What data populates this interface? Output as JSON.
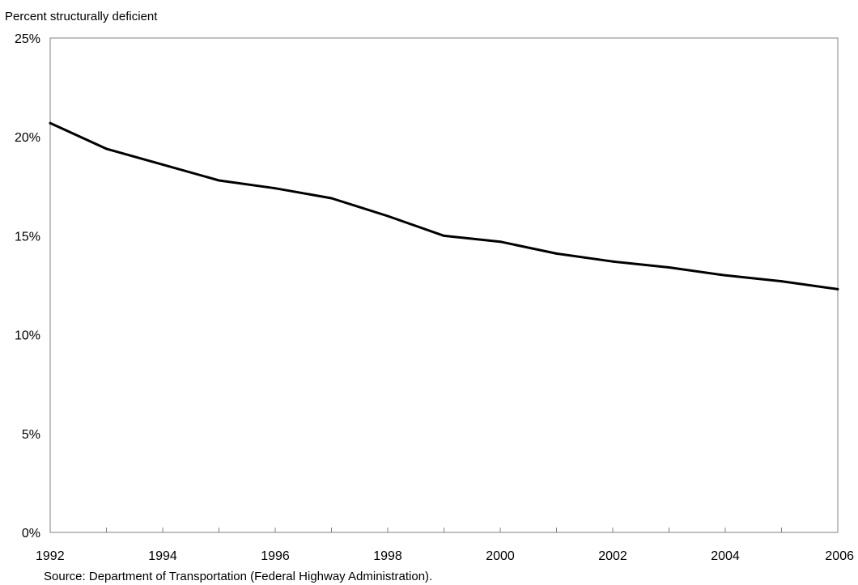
{
  "chart_data": {
    "type": "line",
    "title": "",
    "ylabel": "Percent structurally deficient",
    "xlabel": "",
    "source": "Source: Department of Transportation (Federal Highway Administration).",
    "x": [
      1992,
      1993,
      1994,
      1995,
      1996,
      1997,
      1998,
      1999,
      2000,
      2001,
      2002,
      2003,
      2004,
      2005,
      2006
    ],
    "series": [
      {
        "values": [
          20.7,
          19.4,
          18.6,
          17.8,
          17.4,
          16.9,
          16.0,
          15.0,
          14.7,
          14.1,
          13.7,
          13.4,
          13.0,
          12.7,
          12.3
        ]
      }
    ],
    "xlim": [
      1992,
      2006
    ],
    "ylim": [
      0,
      25
    ],
    "x_tick_labels": [
      "1992",
      "1994",
      "1996",
      "1998",
      "2000",
      "2002",
      "2004",
      "2006"
    ],
    "x_ticks": [
      1992,
      1993,
      1994,
      1995,
      1996,
      1997,
      1998,
      1999,
      2000,
      2001,
      2002,
      2003,
      2004,
      2005,
      2006
    ],
    "y_tick_labels": [
      "0%",
      "5%",
      "10%",
      "15%",
      "20%",
      "25%"
    ],
    "y_ticks": [
      0,
      5,
      10,
      15,
      20,
      25
    ],
    "grid": false,
    "legend": "none",
    "line_color": "#000000",
    "frame_color": "#808080"
  }
}
